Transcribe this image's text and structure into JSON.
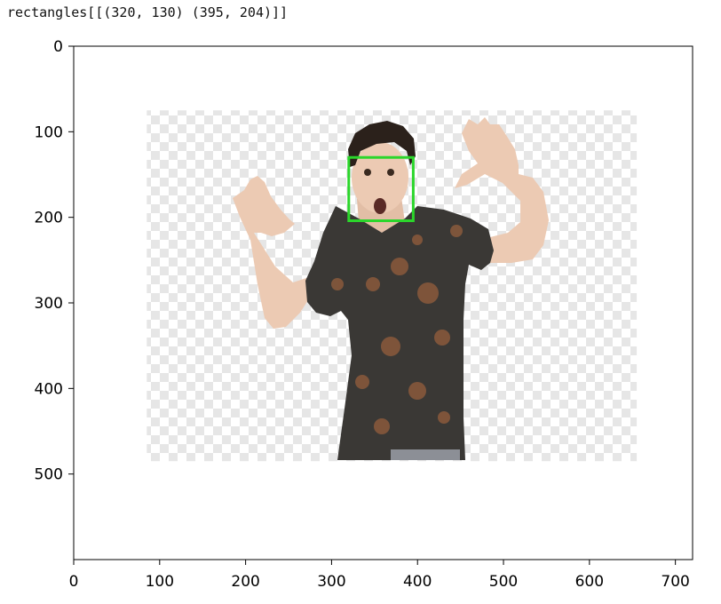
{
  "output": {
    "printed_text": "rectangles[[(320, 130) (395, 204)]]"
  },
  "figure": {
    "image_extent": {
      "x": [
        0,
        720
      ],
      "y": [
        600,
        0
      ]
    },
    "photo_region": {
      "x": [
        85,
        655
      ],
      "y": [
        75,
        485
      ]
    },
    "face_box": {
      "x1": 320,
      "y1": 130,
      "x2": 395,
      "y2": 204,
      "color": "#2bd62b"
    },
    "shirt_color": "#3a3835",
    "skin_color": "#eccab3",
    "hair_color": "#2b211b"
  },
  "chart_data": {
    "type": "image",
    "xlim": [
      0,
      720
    ],
    "ylim": [
      600,
      0
    ],
    "xticks": [
      0,
      100,
      200,
      300,
      400,
      500,
      600,
      700
    ],
    "yticks": [
      0,
      100,
      200,
      300,
      400,
      500
    ],
    "rectangles": [
      {
        "x1": 320,
        "y1": 130,
        "x2": 395,
        "y2": 204
      }
    ]
  }
}
